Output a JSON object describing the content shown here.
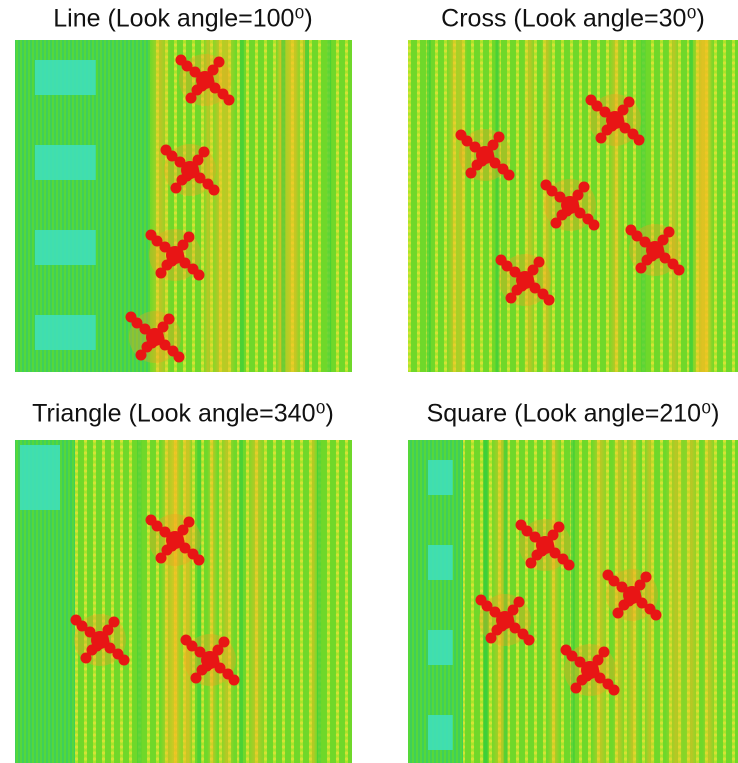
{
  "panels": [
    {
      "title": "Line (Look angle=100⁰)"
    },
    {
      "title": "Cross (Look angle=30⁰)"
    },
    {
      "title": "Triangle (Look angle=340⁰)"
    },
    {
      "title": "Square (Look angle=210⁰)"
    }
  ]
}
